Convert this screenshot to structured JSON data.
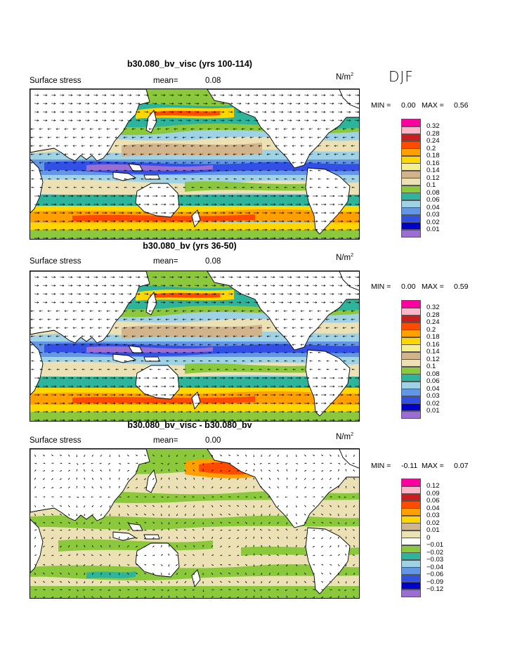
{
  "season": "DJF",
  "panels": [
    {
      "title": "b30.080_bv_visc (yrs 100-114)",
      "field_label": "Surface stress",
      "mean_label": "mean=",
      "mean_value": "0.08",
      "units": "N/m",
      "units_exp": "2",
      "min_label": "MIN =",
      "min_value": "0.00",
      "max_label": "MAX =",
      "max_value": "0.56",
      "legend": [
        "0.32",
        "0.28",
        "0.24",
        "0.2",
        "0.18",
        "0.16",
        "0.14",
        "0.12",
        "0.1",
        "0.08",
        "0.06",
        "0.04",
        "0.03",
        "0.02",
        "0.01"
      ]
    },
    {
      "title": "b30.080_bv (yrs 36-50)",
      "field_label": "Surface stress",
      "mean_label": "mean=",
      "mean_value": "0.08",
      "units": "N/m",
      "units_exp": "2",
      "min_label": "MIN =",
      "min_value": "0.00",
      "max_label": "MAX =",
      "max_value": "0.59",
      "legend": [
        "0.32",
        "0.28",
        "0.24",
        "0.2",
        "0.18",
        "0.16",
        "0.14",
        "0.12",
        "0.1",
        "0.08",
        "0.06",
        "0.04",
        "0.03",
        "0.02",
        "0.01"
      ]
    },
    {
      "title": "b30.080_bv_visc - b30.080_bv",
      "field_label": "Surface stress",
      "mean_label": "mean=",
      "mean_value": "0.00",
      "units": "N/m",
      "units_exp": "2",
      "min_label": "MIN =",
      "min_value": "-0.11",
      "max_label": "MAX =",
      "max_value": "0.07",
      "legend": [
        "0.12",
        "0.09",
        "0.06",
        "0.04",
        "0.03",
        "0.02",
        "0.01",
        "0",
        "-0.01",
        "-0.02",
        "-0.03",
        "-0.04",
        "-0.06",
        "-0.09",
        "-0.12"
      ]
    }
  ],
  "colors": {
    "abs_scale": [
      "#ff00a0",
      "#ffb4c8",
      "#c81e1e",
      "#ff4b00",
      "#ffa000",
      "#ffd700",
      "#f5f08c",
      "#d2b48c",
      "#ebe1b4",
      "#8cc83c",
      "#2db49b",
      "#a0d2e6",
      "#6496e6",
      "#3250e6",
      "#0000c8",
      "#9b6ed2"
    ],
    "diff_scale": [
      "#ff00a0",
      "#ffb4c8",
      "#c81e1e",
      "#ff4b00",
      "#ffa000",
      "#ffd700",
      "#d2b48c",
      "#ebe1b4",
      "#ffffff",
      "#8cc83c",
      "#2db49b",
      "#a0d2e6",
      "#6496e6",
      "#3250e6",
      "#0000c8",
      "#9b6ed2"
    ]
  }
}
